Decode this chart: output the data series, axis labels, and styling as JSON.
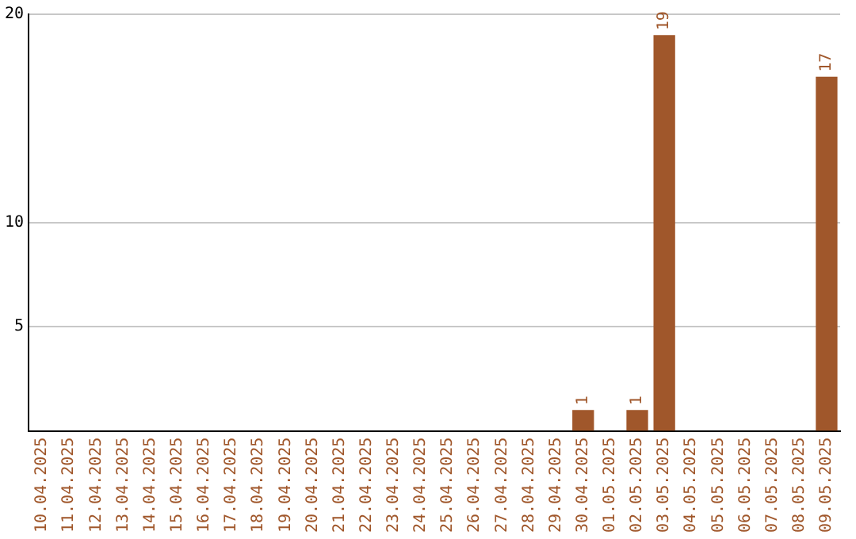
{
  "chart_data": {
    "type": "bar",
    "categories": [
      "10.04.2025",
      "11.04.2025",
      "12.04.2025",
      "13.04.2025",
      "14.04.2025",
      "15.04.2025",
      "16.04.2025",
      "17.04.2025",
      "18.04.2025",
      "19.04.2025",
      "20.04.2025",
      "21.04.2025",
      "22.04.2025",
      "23.04.2025",
      "24.04.2025",
      "25.04.2025",
      "26.04.2025",
      "27.04.2025",
      "28.04.2025",
      "29.04.2025",
      "30.04.2025",
      "01.05.2025",
      "02.05.2025",
      "03.05.2025",
      "04.05.2025",
      "05.05.2025",
      "06.05.2025",
      "07.05.2025",
      "08.05.2025",
      "09.05.2025"
    ],
    "values": [
      0,
      0,
      0,
      0,
      0,
      0,
      0,
      0,
      0,
      0,
      0,
      0,
      0,
      0,
      0,
      0,
      0,
      0,
      0,
      0,
      1,
      0,
      1,
      19,
      0,
      0,
      0,
      0,
      0,
      17
    ],
    "value_labels": [
      null,
      null,
      null,
      null,
      null,
      null,
      null,
      null,
      null,
      null,
      null,
      null,
      null,
      null,
      null,
      null,
      null,
      null,
      null,
      null,
      "1",
      null,
      "1",
      "19",
      null,
      null,
      null,
      null,
      null,
      "17"
    ],
    "color": "#a0572b",
    "ylim": [
      0,
      20
    ],
    "yticks": [
      5,
      10,
      20
    ],
    "grid": "y",
    "legend": false
  }
}
